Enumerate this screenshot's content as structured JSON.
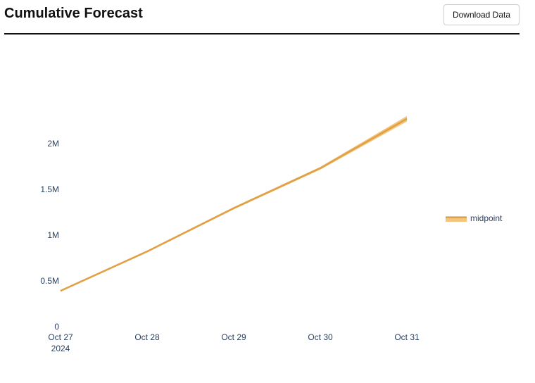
{
  "header": {
    "title": "Cumulative Forecast",
    "button": "Download Data"
  },
  "chart_data": {
    "type": "line",
    "x": [
      "2024-10-27",
      "2024-10-28",
      "2024-10-29",
      "2024-10-30",
      "2024-10-31"
    ],
    "series": [
      {
        "name": "midpoint",
        "color": "#e0a045",
        "band_color": "#f3c57d",
        "values": [
          430000,
          860000,
          1333000,
          1770000,
          2310000
        ],
        "upper": [
          440000,
          870000,
          1345000,
          1785000,
          2340000
        ],
        "lower": [
          420000,
          850000,
          1320000,
          1755000,
          2280000
        ]
      }
    ],
    "xlim": [
      "2024-10-27",
      "2024-10-31"
    ],
    "xticks": [
      {
        "value": "2024-10-27",
        "label": "Oct 27\n2024"
      },
      {
        "value": "2024-10-28",
        "label": "Oct 28"
      },
      {
        "value": "2024-10-29",
        "label": "Oct 29"
      },
      {
        "value": "2024-10-30",
        "label": "Oct 30"
      },
      {
        "value": "2024-10-31",
        "label": "Oct 31"
      }
    ],
    "ylim": [
      0,
      2500000
    ],
    "yticks": [
      0,
      {
        "value": 500000,
        "label": "0.5M"
      },
      {
        "value": 1000000,
        "label": "1M"
      },
      {
        "value": 1500000,
        "label": "1.5M"
      },
      {
        "value": 2000000,
        "label": "2M"
      }
    ],
    "grid": false,
    "legend": "right"
  }
}
